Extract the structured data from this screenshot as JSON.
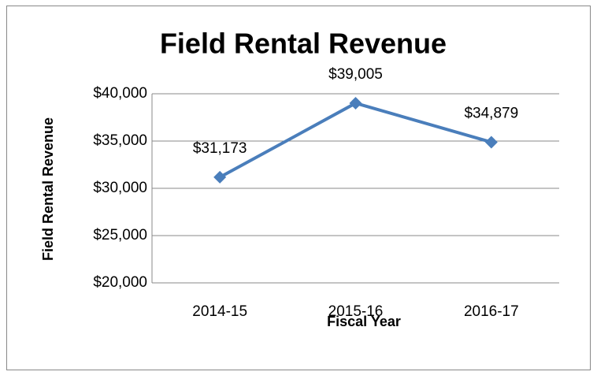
{
  "chart_data": {
    "type": "line",
    "title": "Field Rental Revenue",
    "x_label": "Fiscal Year",
    "y_label": "Field Rental Revenue",
    "categories": [
      "2014-15",
      "2015-16",
      "2016-17"
    ],
    "series": [
      {
        "name": "Field Rental Revenue",
        "color": "#4a7ebb",
        "values": [
          31173,
          39005,
          34879
        ],
        "value_labels": [
          "$31,173",
          "$39,005",
          "$34,879"
        ]
      }
    ],
    "ylim": [
      20000,
      40000
    ],
    "yticks": [
      {
        "value": 20000,
        "label": "$20,000"
      },
      {
        "value": 25000,
        "label": "$25,000"
      },
      {
        "value": 30000,
        "label": "$30,000"
      },
      {
        "value": 35000,
        "label": "$35,000"
      },
      {
        "value": 40000,
        "label": "$40,000"
      }
    ],
    "grid": true
  }
}
